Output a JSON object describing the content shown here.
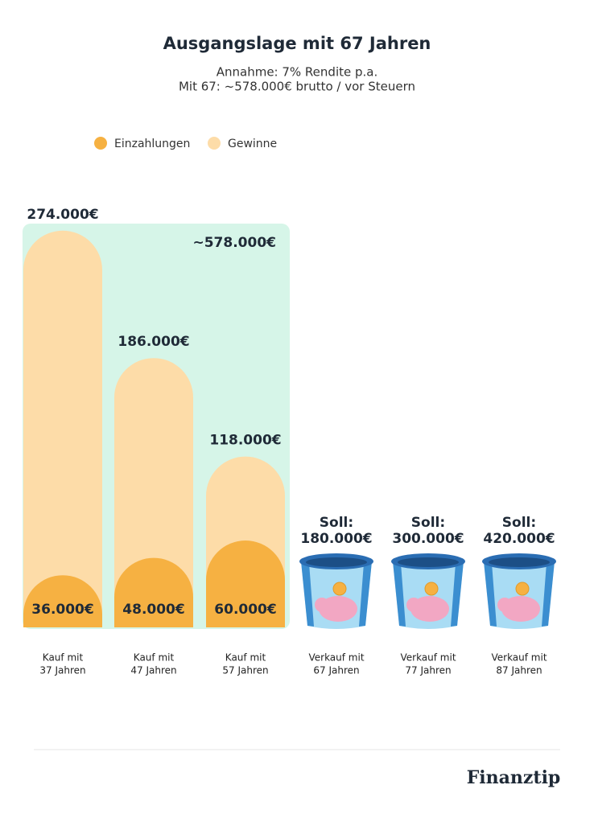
{
  "chart_data": {
    "type": "bar",
    "title": "Ausgangslage mit 67 Jahren",
    "subtitle": [
      "Annahme: 7% Rendite p.a.",
      "Mit 67: ~578.000€ brutto / vor Steuern"
    ],
    "categories": [
      [
        "Kauf mit",
        "37 Jahren"
      ],
      [
        "Kauf mit",
        "47 Jahren"
      ],
      [
        "Kauf mit",
        "57 Jahren"
      ]
    ],
    "series": [
      {
        "name": "Einzahlungen",
        "color": "#f6b142",
        "values": [
          36000,
          48000,
          60000
        ],
        "value_labels": [
          "36.000€",
          "48.000€",
          "60.000€"
        ]
      },
      {
        "name": "Gewinne",
        "color": "#fddca8",
        "values": [
          238000,
          138000,
          58000
        ]
      }
    ],
    "totals": [
      274000,
      186000,
      118000
    ],
    "total_labels": [
      "274.000€",
      "186.000€",
      "118.000€"
    ],
    "highlight_label": "~578.000€",
    "highlight_color": "#d6f5e8",
    "target_categories": [
      [
        "Verkauf mit",
        "67 Jahren"
      ],
      [
        "Verkauf mit",
        "77 Jahren"
      ],
      [
        "Verkauf mit",
        "87 Jahren"
      ]
    ],
    "target_prefix": "Soll:",
    "targets": [
      180000,
      300000,
      420000
    ],
    "target_labels": [
      "180.000€",
      "300.000€",
      "420.000€"
    ],
    "ylim": [
      0,
      280000
    ],
    "legend": "top-left",
    "brand": "Finanztip"
  }
}
